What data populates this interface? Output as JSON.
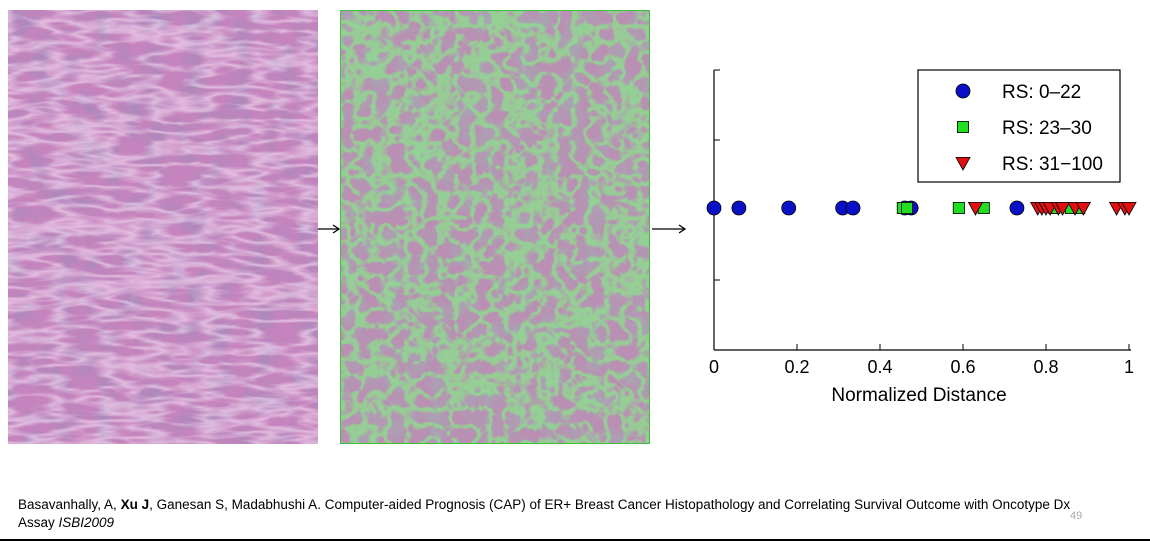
{
  "images": {
    "left_alt": "H&E stained breast cancer histopathology image",
    "middle_alt": "Histopathology image with segmented structures outlined in green"
  },
  "colors": {
    "he_pink": "#c97fbf",
    "he_purple": "#6b3f7f",
    "seg_green": "#3fbf3f",
    "rs_low": "#0a10c8",
    "rs_mid": "#22dd22",
    "rs_high": "#e01010"
  },
  "chart_data": {
    "type": "scatter",
    "xlabel": "Normalized Distance",
    "ylabel": "",
    "xlim": [
      0,
      1
    ],
    "x_ticks": [
      "0",
      "0.2",
      "0.4",
      "0.6",
      "0.8",
      "1"
    ],
    "grid": false,
    "legend_placement": "top-right",
    "series": [
      {
        "name": "RS: 0–22",
        "marker": "circle",
        "color": "#0a10c8",
        "x": [
          0.0,
          0.06,
          0.18,
          0.31,
          0.335,
          0.46,
          0.475,
          0.73
        ]
      },
      {
        "name": "RS: 23–30",
        "marker": "square",
        "color": "#22dd22",
        "x": [
          0.455,
          0.465,
          0.59,
          0.65,
          0.82,
          0.86,
          0.88
        ]
      },
      {
        "name": "RS: 31−100",
        "marker": "triangle-down",
        "color": "#e01010",
        "x": [
          0.63,
          0.78,
          0.79,
          0.8,
          0.81,
          0.83,
          0.84,
          0.87,
          0.89,
          0.97,
          0.99,
          1.0
        ]
      }
    ]
  },
  "citation": {
    "part1": "Basavanhally, A, ",
    "bold_author": "Xu J",
    "part2": ", Ganesan S, Madabhushi A. Computer-aided Prognosis (CAP) of ER+ Breast Cancer Histopathology and Correlating Survival Outcome with Oncotype Dx Assay ",
    "venue": "ISBI2009"
  },
  "page_number": "49"
}
